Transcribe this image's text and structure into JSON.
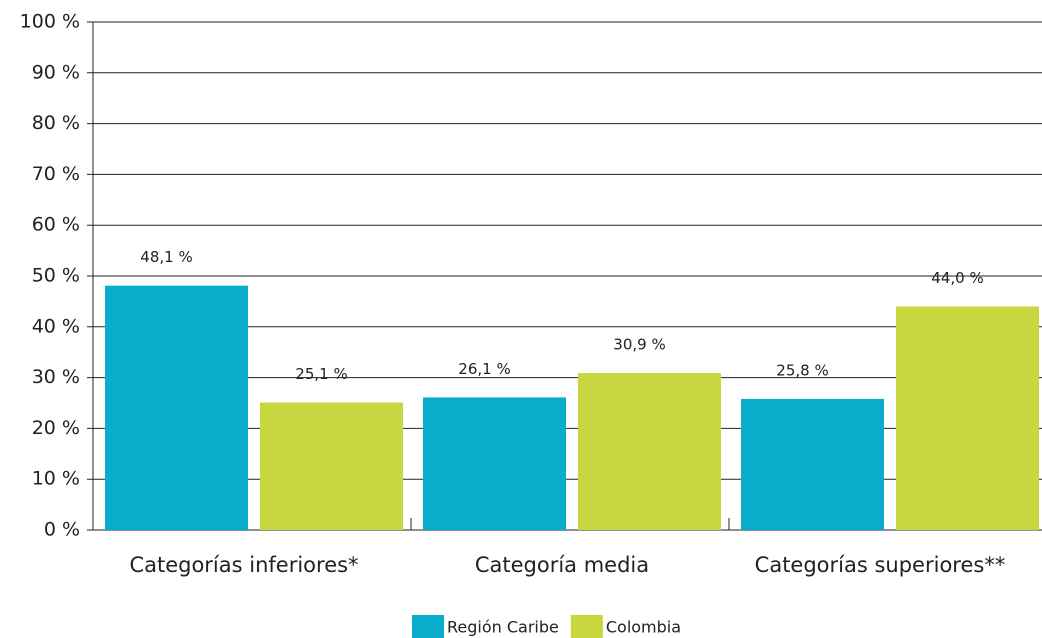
{
  "chart_data": {
    "type": "bar",
    "categories": [
      "Categorías inferiores*",
      "Categoría media",
      "Categorías superiores**"
    ],
    "series": [
      {
        "name": "Región Caribe",
        "color": "#0aaccc",
        "values": [
          48.1,
          26.1,
          25.8
        ],
        "value_labels": [
          "48,1 %",
          "26,1 %",
          "25,8 %"
        ]
      },
      {
        "name": "Colombia",
        "color": "#c8d740",
        "values": [
          25.1,
          30.9,
          44.0
        ],
        "value_labels": [
          "25,1 %",
          "30,9 %",
          "44,0 %"
        ]
      }
    ],
    "ylim": [
      0,
      100
    ],
    "yticks": [
      {
        "value": 0,
        "label": "0 %"
      },
      {
        "value": 10,
        "label": "10 %"
      },
      {
        "value": 20,
        "label": "20 %"
      },
      {
        "value": 30,
        "label": "30 %"
      },
      {
        "value": 40,
        "label": "40 %"
      },
      {
        "value": 50,
        "label": "50 %"
      },
      {
        "value": 60,
        "label": "60 %"
      },
      {
        "value": 70,
        "label": "70 %"
      },
      {
        "value": 80,
        "label": "80 %"
      },
      {
        "value": 90,
        "label": "90 %"
      },
      {
        "value": 100,
        "label": "100 %"
      }
    ],
    "grid": true,
    "legend": "bottom"
  }
}
